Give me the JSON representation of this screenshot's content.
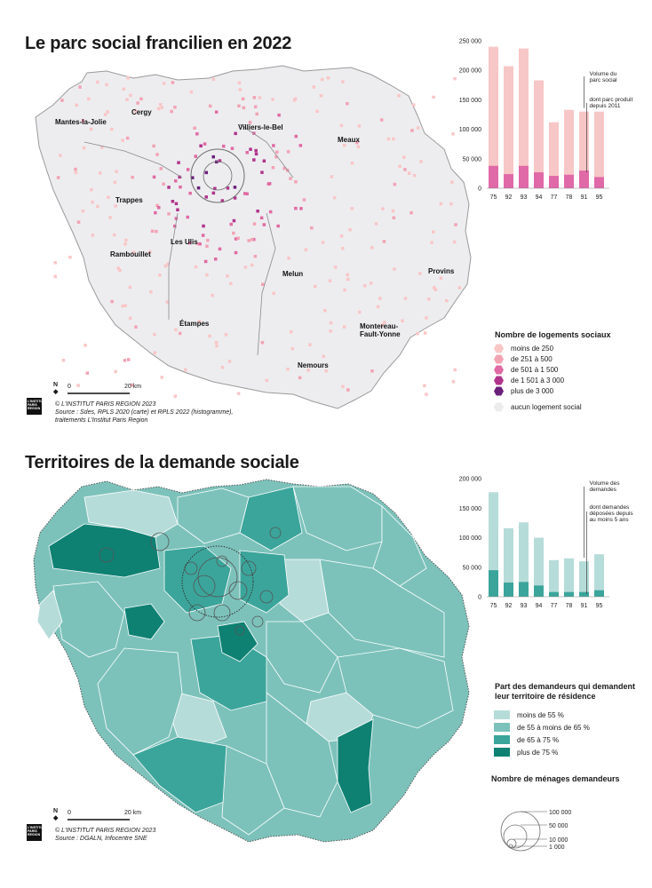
{
  "map1": {
    "title": "Le parc social francilien en 2022",
    "cities": [
      {
        "name": "Mantes-la-Jolie",
        "x": 62,
        "y": 140
      },
      {
        "name": "Cergy",
        "x": 148,
        "y": 129
      },
      {
        "name": "Villiers-le-Bel",
        "x": 268,
        "y": 146
      },
      {
        "name": "Meaux",
        "x": 380,
        "y": 160
      },
      {
        "name": "Trappes",
        "x": 130,
        "y": 228
      },
      {
        "name": "Les Ulis",
        "x": 192,
        "y": 275
      },
      {
        "name": "Rambouillet",
        "x": 124,
        "y": 289
      },
      {
        "name": "Melun",
        "x": 318,
        "y": 311
      },
      {
        "name": "Provins",
        "x": 482,
        "y": 308
      },
      {
        "name": "Étampes",
        "x": 202,
        "y": 367
      },
      {
        "name": "Montereau-",
        "x": 405,
        "y": 370
      },
      {
        "name": "Fault-Yonne",
        "x": 405,
        "y": 379
      },
      {
        "name": "Nemours",
        "x": 335,
        "y": 414
      }
    ],
    "chart_data": {
      "type": "bar",
      "categories": [
        "75",
        "92",
        "93",
        "94",
        "77",
        "78",
        "91",
        "95"
      ],
      "series": [
        {
          "name": "Volume du parc social",
          "values": [
            240000,
            207000,
            237000,
            183000,
            112000,
            133000,
            130000,
            130000
          ]
        },
        {
          "name": "dont parc produit depuis 2011",
          "values": [
            38000,
            24000,
            38000,
            27000,
            21000,
            23000,
            30000,
            19000
          ]
        }
      ],
      "yticks": [
        0,
        50000,
        100000,
        150000,
        200000,
        250000
      ],
      "ytick_labels": [
        "0",
        "50 000",
        "100 000",
        "150 000",
        "200 000",
        "250 000"
      ],
      "ylim": [
        0,
        250000
      ],
      "annotations": [
        "Volume du",
        "parc social",
        "dont parc produit",
        "depuis 2011"
      ]
    },
    "legend": {
      "title": "Nombre de logements sociaux",
      "items": [
        {
          "label": "moins de 250",
          "color": "#f9c6c6"
        },
        {
          "label": "de 251 à 500",
          "color": "#f2a3b3"
        },
        {
          "label": "de 501 à 1 500",
          "color": "#e06aa3"
        },
        {
          "label": "de 1 501 à 3 000",
          "color": "#b0348b"
        },
        {
          "label": "plus de 3 000",
          "color": "#6b1f7a"
        },
        {
          "label": "aucun logement social",
          "color": "#ececec"
        }
      ]
    },
    "scale": {
      "zero": "0",
      "dist": "20 km"
    },
    "credits": [
      "© L'INSTITUT PARIS REGION 2023",
      "Source : Sdes, RPLS 2020 (carte) et RPLS 2022 (histogramme),",
      "traitements L'Institut Paris Region"
    ]
  },
  "map2": {
    "title": "Territoires de la demande sociale",
    "chart_data": {
      "type": "bar",
      "categories": [
        "75",
        "92",
        "93",
        "94",
        "77",
        "78",
        "91",
        "95"
      ],
      "series": [
        {
          "name": "Volume des demandes",
          "values": [
            177000,
            116000,
            126000,
            100000,
            62000,
            65000,
            60000,
            72000
          ]
        },
        {
          "name": "dont demandes déposées depuis au moins 5 ans",
          "values": [
            45000,
            24000,
            25000,
            19000,
            8000,
            8000,
            8000,
            11000
          ]
        }
      ],
      "yticks": [
        0,
        50000,
        100000,
        150000,
        200000
      ],
      "ytick_labels": [
        "0",
        "50 000",
        "100 000",
        "150 000",
        "200 000"
      ],
      "ylim": [
        0,
        200000
      ],
      "annotations": [
        "Volume des",
        "demandes",
        "dont demandes",
        "déposées depuis",
        "au moins 5 ans"
      ]
    },
    "legend": {
      "title": "Part des demandeurs qui demandent leur territoire de résidence",
      "items": [
        {
          "label": "moins de 55 %",
          "color": "#b6dcd9"
        },
        {
          "label": "de 55 à moins de 65 %",
          "color": "#7cc2bb"
        },
        {
          "label": "de 65 à 75 %",
          "color": "#3ba59b"
        },
        {
          "label": "plus de 75 %",
          "color": "#0e8173"
        }
      ]
    },
    "circle_legend": {
      "title": "Nombre de ménages demandeurs",
      "items": [
        "100 000",
        "50 000",
        "10 000",
        "1 000"
      ]
    },
    "scale": {
      "zero": "0",
      "dist": "20 km"
    },
    "credits": [
      "© L'INSTITUT PARIS REGION 2023",
      "Source : DGALN, Infocentre SNE"
    ],
    "logo": [
      "L'INSTITUT",
      "PARIS",
      "REGION"
    ]
  }
}
